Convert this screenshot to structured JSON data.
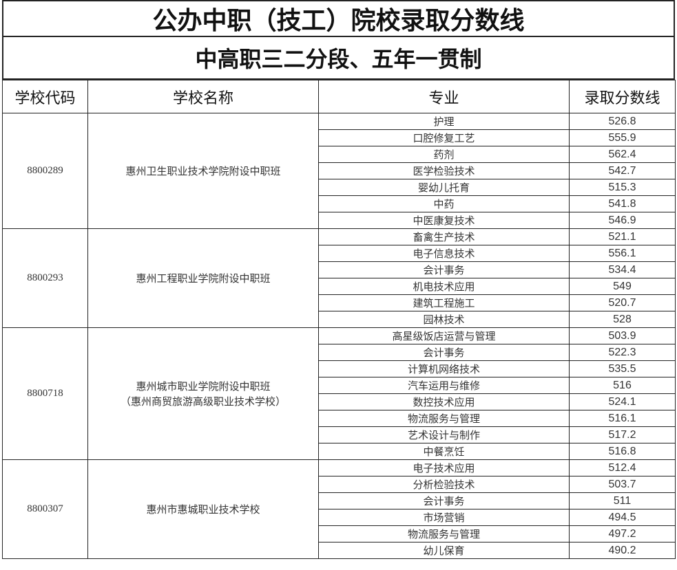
{
  "title": "公办中职（技工）院校录取分数线",
  "subtitle": "中高职三二分段、五年一贯制",
  "columns": [
    "学校代码",
    "学校名称",
    "专业",
    "录取分数线"
  ],
  "schools": [
    {
      "code": "8800289",
      "name": [
        "惠州卫生职业技术学院附设中职班"
      ],
      "majors": [
        {
          "major": "护理",
          "score": "526.8"
        },
        {
          "major": "口腔修复工艺",
          "score": "555.9"
        },
        {
          "major": "药剂",
          "score": "562.4"
        },
        {
          "major": "医学检验技术",
          "score": "542.7"
        },
        {
          "major": "婴幼儿托育",
          "score": "515.3"
        },
        {
          "major": "中药",
          "score": "541.8"
        },
        {
          "major": "中医康复技术",
          "score": "546.9"
        }
      ]
    },
    {
      "code": "8800293",
      "name": [
        "惠州工程职业学院附设中职班"
      ],
      "majors": [
        {
          "major": "畜禽生产技术",
          "score": "521.1"
        },
        {
          "major": "电子信息技术",
          "score": "556.1"
        },
        {
          "major": "会计事务",
          "score": "534.4"
        },
        {
          "major": "机电技术应用",
          "score": "549"
        },
        {
          "major": "建筑工程施工",
          "score": "520.7"
        },
        {
          "major": "园林技术",
          "score": "528"
        }
      ]
    },
    {
      "code": "8800718",
      "name": [
        "惠州城市职业学院附设中职班",
        "（惠州商贸旅游高级职业技术学校）"
      ],
      "majors": [
        {
          "major": "高星级饭店运营与管理",
          "score": "503.9"
        },
        {
          "major": "会计事务",
          "score": "522.3"
        },
        {
          "major": "计算机网络技术",
          "score": "535.5"
        },
        {
          "major": "汽车运用与维修",
          "score": "516"
        },
        {
          "major": "数控技术应用",
          "score": "524.1"
        },
        {
          "major": "物流服务与管理",
          "score": "516.1"
        },
        {
          "major": "艺术设计与制作",
          "score": "517.2"
        },
        {
          "major": "中餐烹饪",
          "score": "516.8"
        }
      ]
    },
    {
      "code": "8800307",
      "name": [
        "惠州市惠城职业技术学校"
      ],
      "majors": [
        {
          "major": "电子技术应用",
          "score": "512.4"
        },
        {
          "major": "分析检验技术",
          "score": "503.7"
        },
        {
          "major": "会计事务",
          "score": "511"
        },
        {
          "major": "市场营销",
          "score": "494.5"
        },
        {
          "major": "物流服务与管理",
          "score": "497.2"
        },
        {
          "major": "幼儿保育",
          "score": "490.2"
        }
      ]
    }
  ]
}
